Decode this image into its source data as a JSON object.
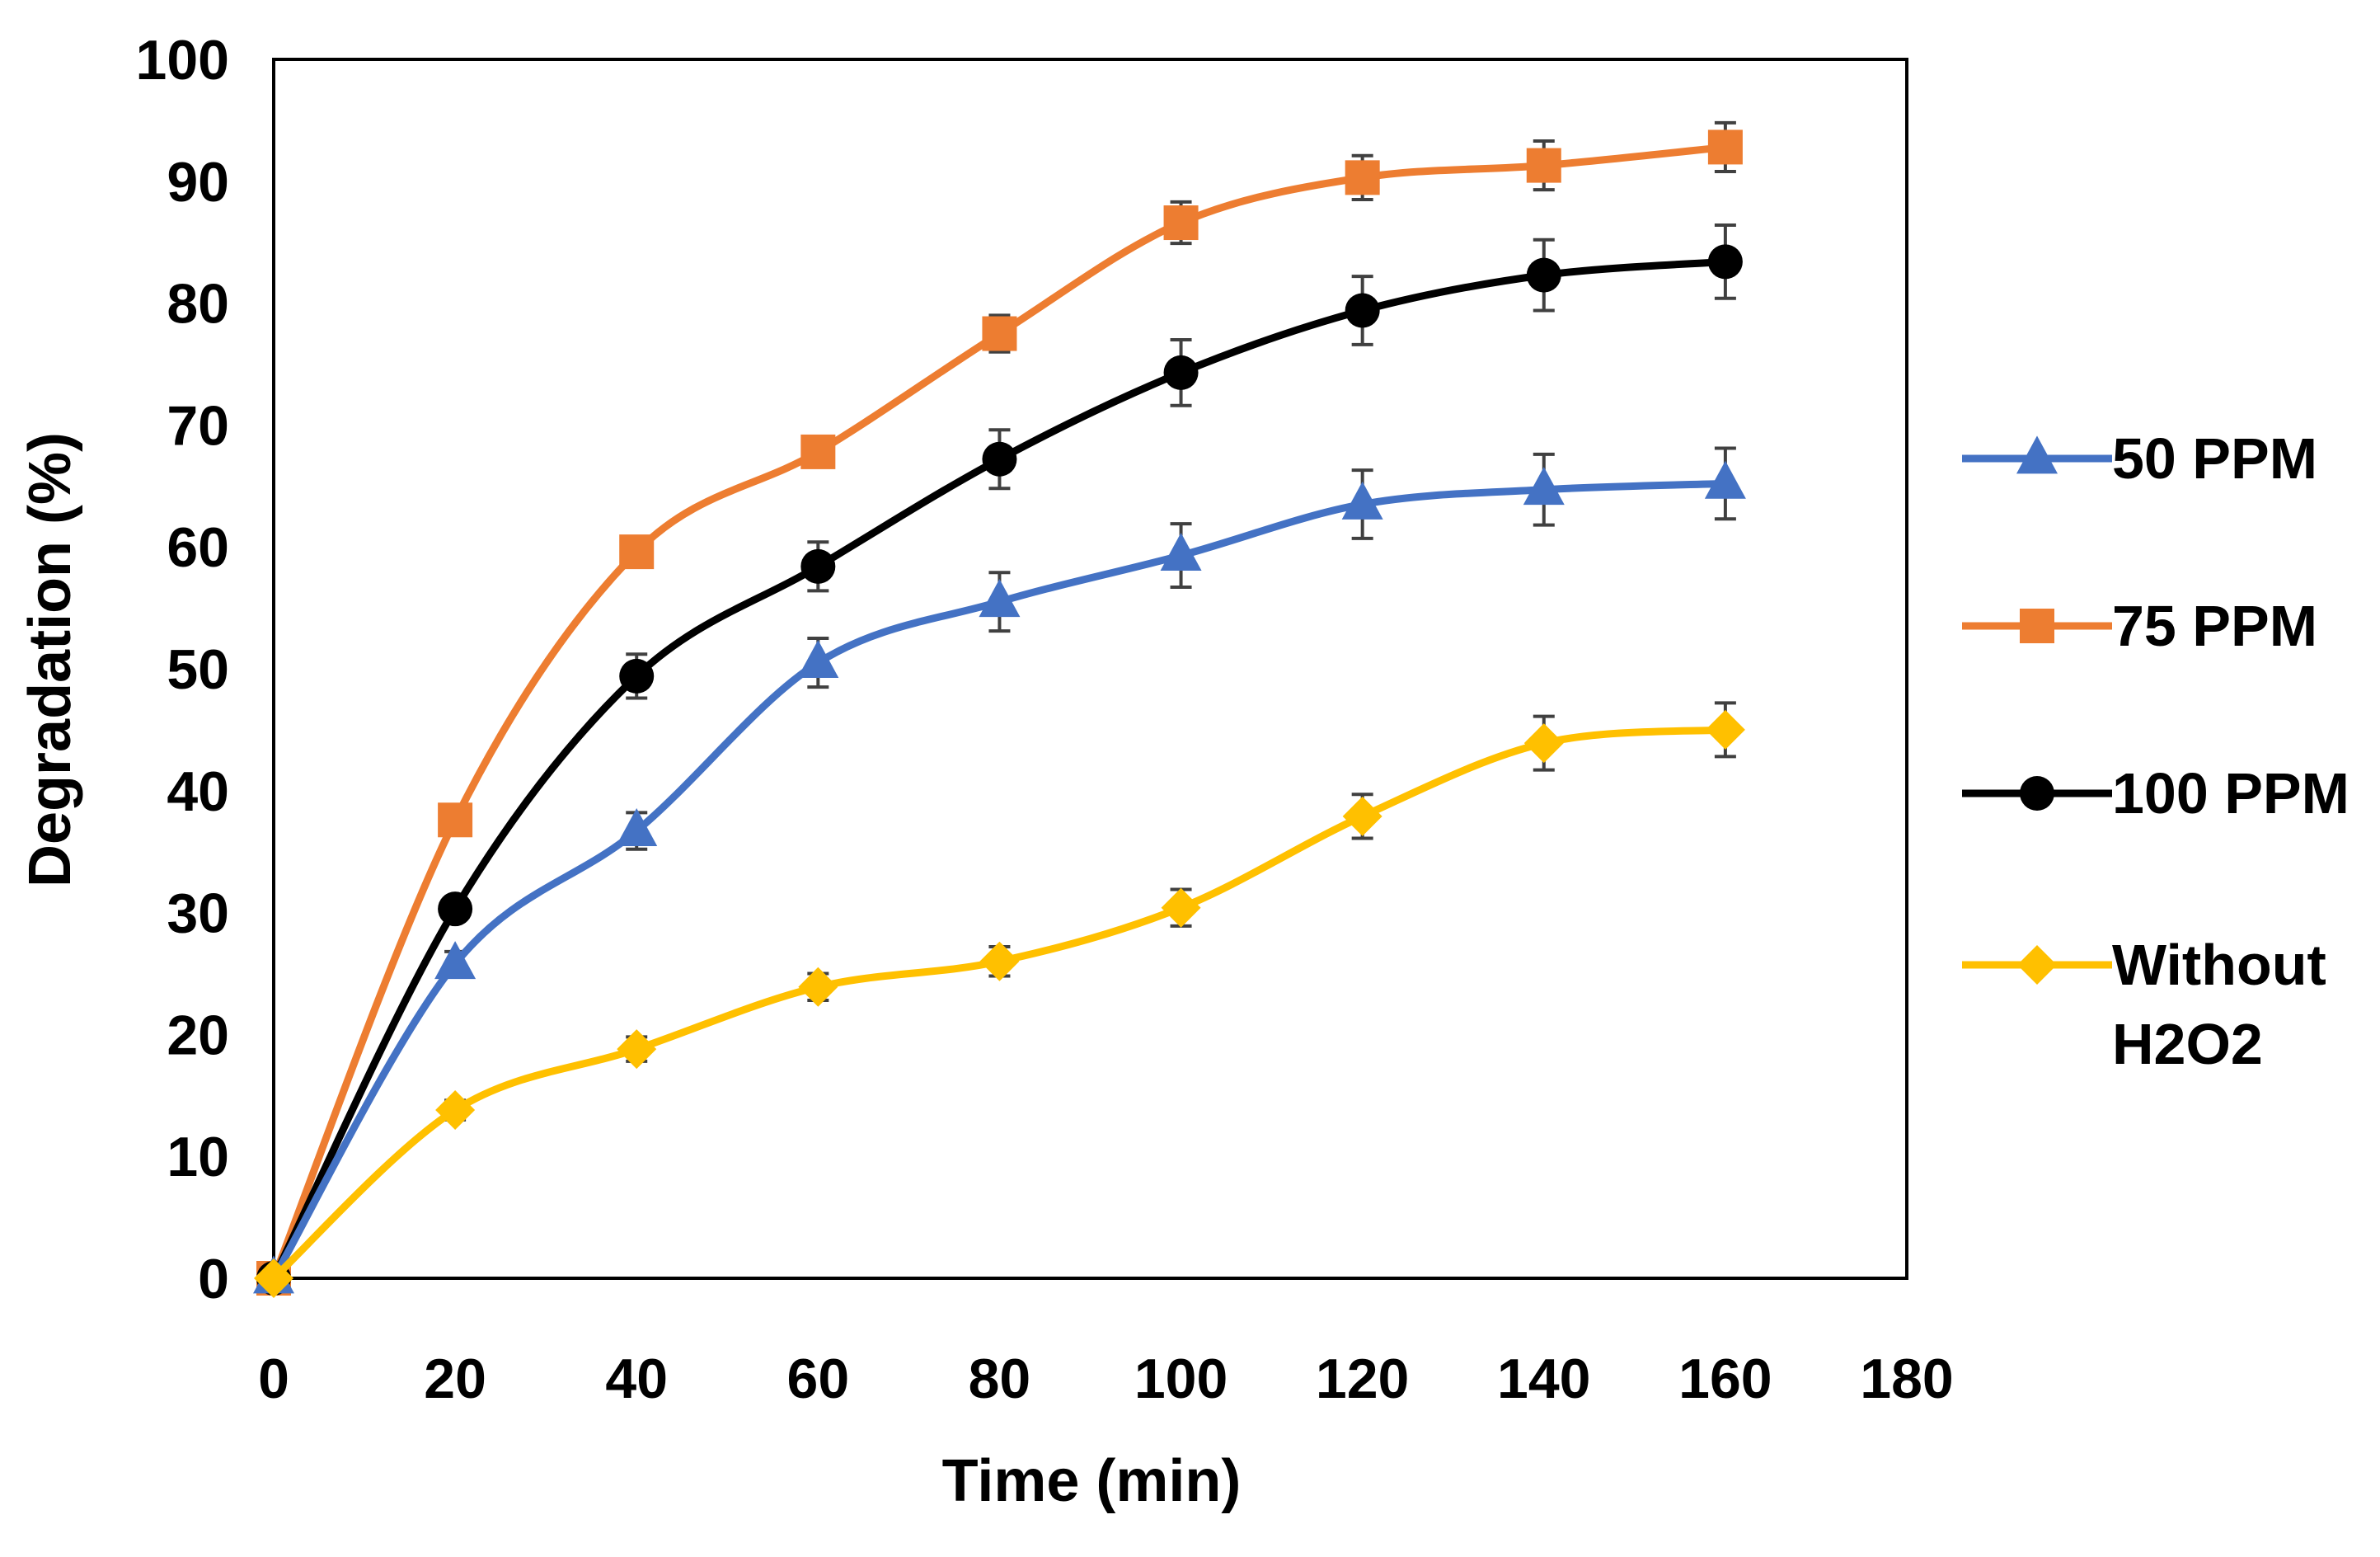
{
  "chart_data": {
    "type": "line",
    "title": "",
    "xlabel": "Time (min)",
    "ylabel": "Degradation (%)",
    "xlim": [
      0,
      180
    ],
    "ylim": [
      0,
      100
    ],
    "x_ticks": [
      0,
      20,
      40,
      60,
      80,
      100,
      120,
      140,
      160,
      180
    ],
    "y_ticks": [
      0,
      10,
      20,
      30,
      40,
      50,
      60,
      70,
      80,
      90,
      100
    ],
    "grid": false,
    "legend_position": "right",
    "x": [
      0,
      20,
      40,
      60,
      80,
      100,
      120,
      140,
      160
    ],
    "series": [
      {
        "name": "50 PPM",
        "color": "#4472C4",
        "marker": "triangle",
        "values": [
          0,
          25.8,
          36.7,
          50.5,
          55.5,
          59.3,
          63.5,
          64.7,
          65.2
        ],
        "errors": [
          0,
          1.0,
          1.5,
          2.0,
          2.4,
          2.6,
          2.8,
          2.9,
          2.9
        ]
      },
      {
        "name": "75 PPM",
        "color": "#ED7D31",
        "marker": "square",
        "values": [
          0,
          37.6,
          59.6,
          67.8,
          77.5,
          86.6,
          90.3,
          91.3,
          92.8
        ],
        "errors": [
          0,
          0.5,
          0.8,
          1.2,
          1.5,
          1.7,
          1.8,
          2.0,
          2.0
        ]
      },
      {
        "name": "100 PPM",
        "color": "#000000",
        "marker": "circle",
        "values": [
          0,
          30.3,
          49.4,
          58.4,
          67.2,
          74.3,
          79.4,
          82.3,
          83.4
        ],
        "errors": [
          0,
          1.0,
          1.8,
          2.0,
          2.4,
          2.7,
          2.8,
          2.9,
          3.0
        ]
      },
      {
        "name": "Without H2O2",
        "color": "#FFC000",
        "marker": "diamond",
        "values": [
          0,
          13.8,
          18.8,
          23.9,
          26.0,
          30.4,
          37.9,
          43.9,
          45.0
        ],
        "errors": [
          0,
          0.8,
          1.0,
          1.1,
          1.2,
          1.5,
          1.8,
          2.2,
          2.2
        ]
      }
    ]
  }
}
